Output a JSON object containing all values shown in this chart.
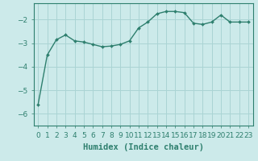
{
  "x": [
    0,
    1,
    2,
    3,
    4,
    5,
    6,
    7,
    8,
    9,
    10,
    11,
    12,
    13,
    14,
    15,
    16,
    17,
    18,
    19,
    20,
    21,
    22,
    23
  ],
  "y": [
    -5.6,
    -3.5,
    -2.85,
    -2.65,
    -2.9,
    -2.95,
    -3.05,
    -3.15,
    -3.12,
    -3.05,
    -2.9,
    -2.35,
    -2.1,
    -1.75,
    -1.65,
    -1.65,
    -1.7,
    -2.15,
    -2.2,
    -2.1,
    -1.8,
    -2.1,
    -2.1,
    -2.1
  ],
  "line_color": "#2e7f6e",
  "marker": "D",
  "marker_size": 2.0,
  "bg_color": "#cceaea",
  "grid_color": "#aad4d4",
  "xlabel": "Humidex (Indice chaleur)",
  "ylim": [
    -6.5,
    -1.3
  ],
  "xlim": [
    -0.5,
    23.5
  ],
  "yticks": [
    -6,
    -5,
    -4,
    -3,
    -2
  ],
  "xtick_labels": [
    "0",
    "1",
    "2",
    "3",
    "4",
    "5",
    "6",
    "7",
    "8",
    "9",
    "10",
    "11",
    "12",
    "13",
    "14",
    "15",
    "16",
    "17",
    "18",
    "19",
    "20",
    "21",
    "22",
    "23"
  ],
  "xlabel_fontsize": 7.5,
  "tick_fontsize": 6.5,
  "line_width": 1.0
}
